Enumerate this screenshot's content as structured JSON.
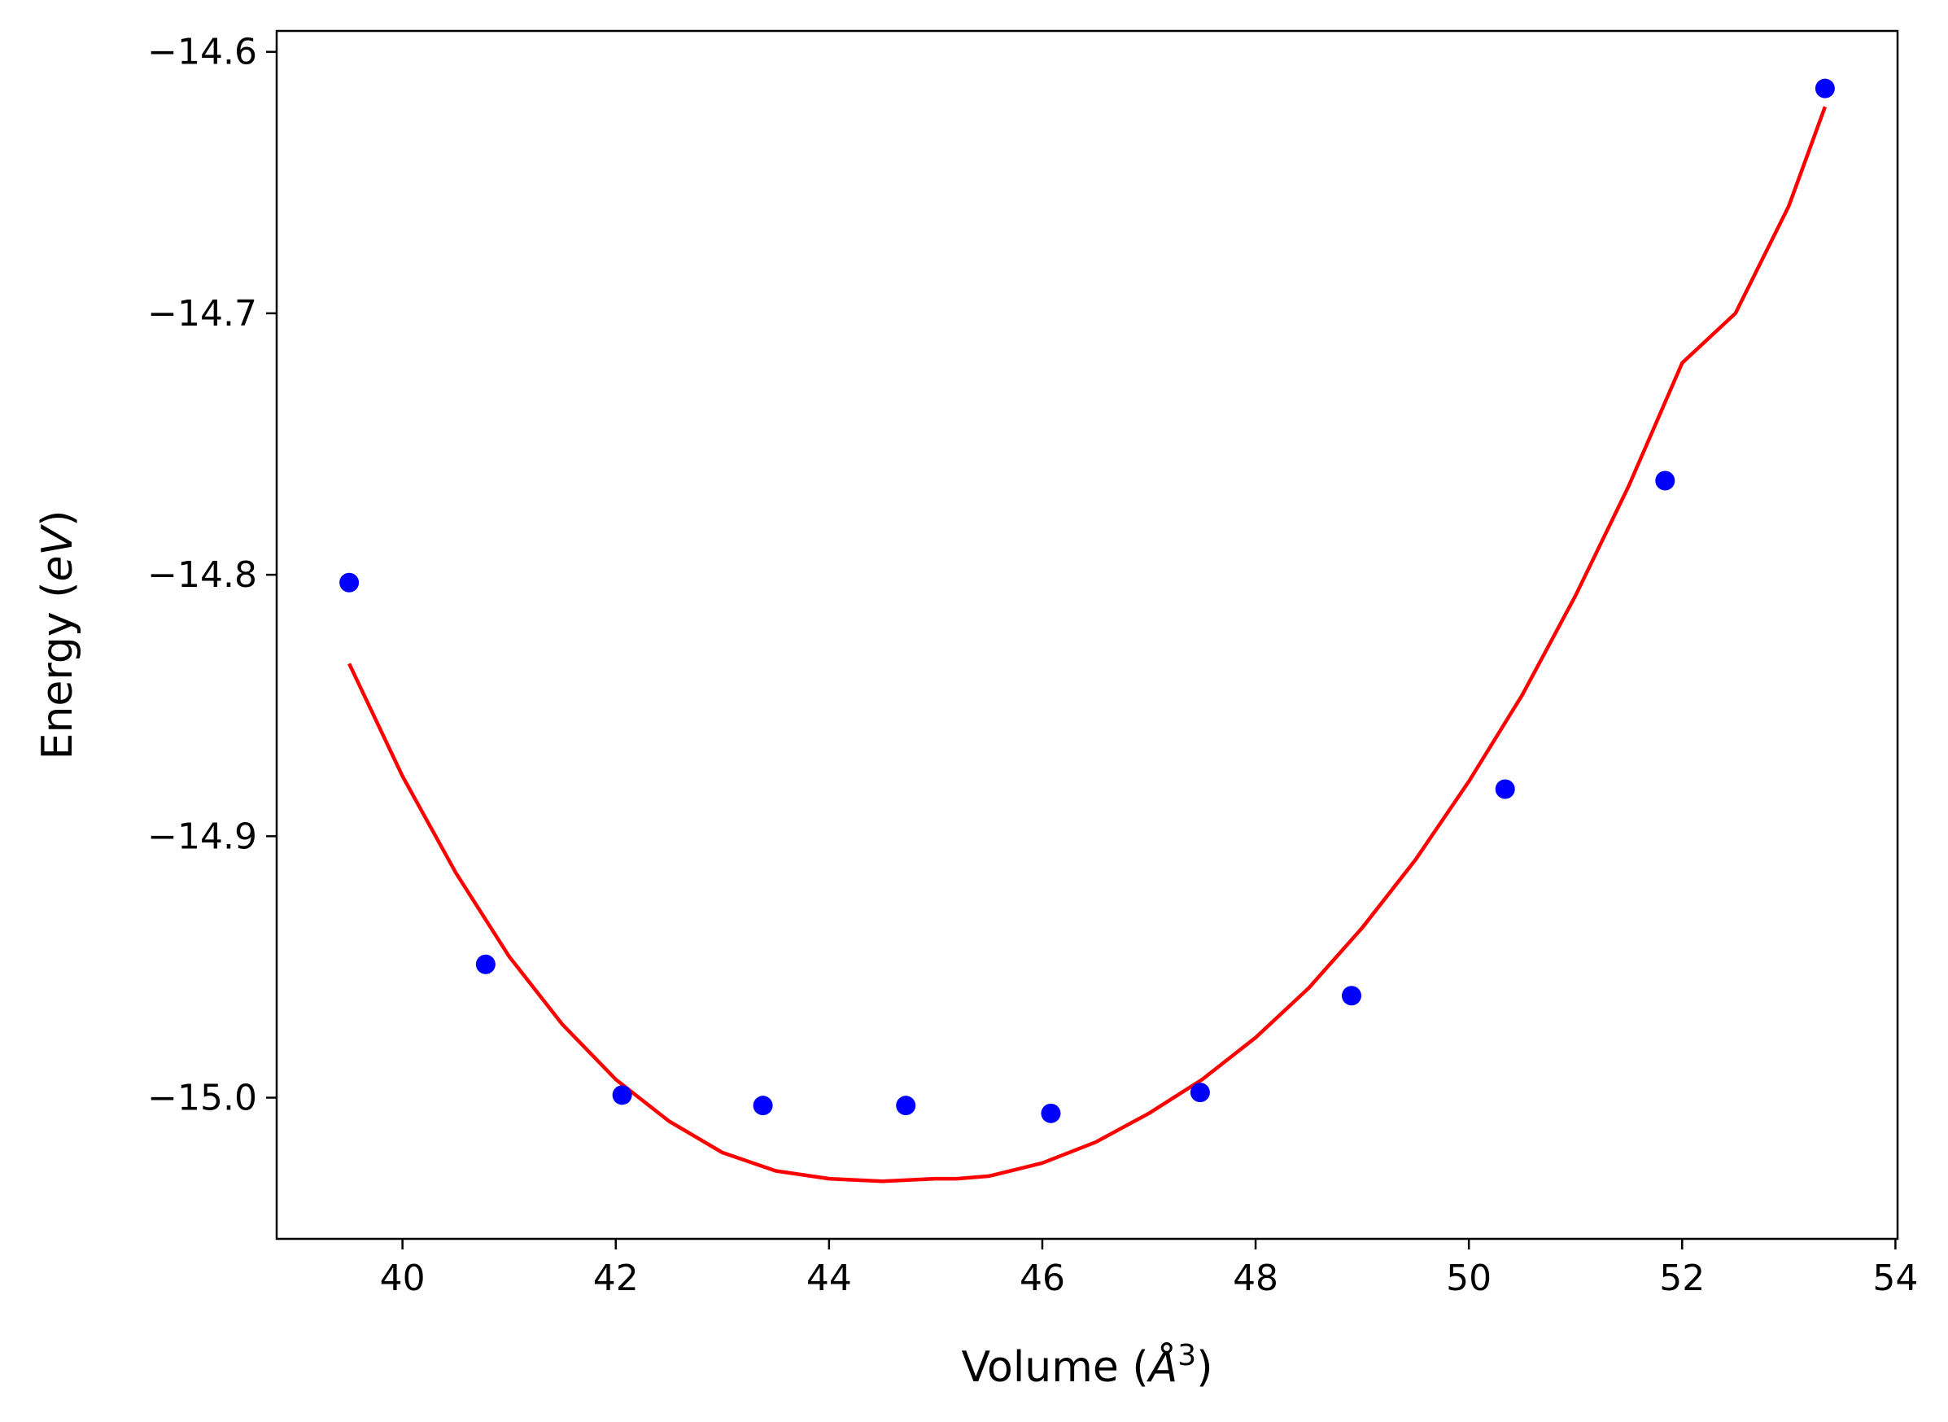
{
  "chart_data": {
    "type": "scatter",
    "title": "",
    "xlabel": "Volume (",
    "xlabel_symbol": "Å",
    "xlabel_exp": "3",
    "xlabel_close": ")",
    "ylabel": "Energy (",
    "ylabel_italic": "eV",
    "ylabel_close": ")",
    "xlim": [
      38.82,
      54.02
    ],
    "ylim": [
      -15.054,
      -14.592
    ],
    "xticks": [
      40,
      42,
      44,
      46,
      48,
      50,
      52,
      54
    ],
    "yticks": [
      -15.0,
      -14.9,
      -14.8,
      -14.7,
      -14.6
    ],
    "ytick_labels": [
      "−15.0",
      "−14.9",
      "−14.8",
      "−14.7",
      "−14.6"
    ],
    "grid": false,
    "series": [
      {
        "kind": "scatter",
        "color": "#0000ff",
        "x": [
          39.5,
          40.78,
          42.06,
          43.38,
          44.72,
          46.08,
          47.48,
          48.9,
          50.34,
          51.84,
          53.34
        ],
        "y": [
          -14.803,
          -14.949,
          -14.999,
          -15.003,
          -15.003,
          -15.006,
          -14.998,
          -14.961,
          -14.882,
          -14.764,
          -14.614
        ]
      },
      {
        "kind": "line",
        "color": "#ff0000",
        "x": [
          39.5,
          40.0,
          40.5,
          41.0,
          41.5,
          42.0,
          42.5,
          43.0,
          43.5,
          44.0,
          44.5,
          45.0,
          45.2,
          45.5,
          46.0,
          46.5,
          47.0,
          47.5,
          48.0,
          48.5,
          49.0,
          49.5,
          50.0,
          50.5,
          51.0,
          51.5,
          52.0,
          52.5,
          53.0,
          53.34
        ],
        "y": [
          -14.834,
          -14.877,
          -14.914,
          -14.946,
          -14.972,
          -14.993,
          -15.009,
          -15.021,
          -15.028,
          -15.031,
          -15.032,
          -15.031,
          -15.031,
          -15.03,
          -15.025,
          -15.017,
          -15.006,
          -14.993,
          -14.977,
          -14.958,
          -14.935,
          -14.909,
          -14.879,
          -14.846,
          -14.808,
          -14.766,
          -14.719,
          -14.7,
          -14.659,
          -14.621
        ]
      }
    ]
  }
}
